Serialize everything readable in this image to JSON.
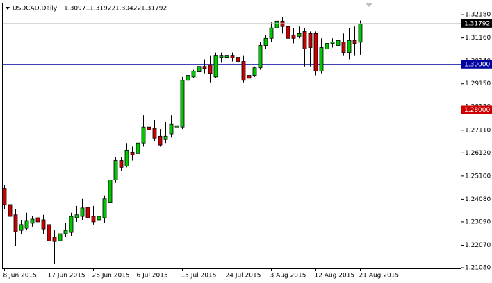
{
  "chart_data": {
    "type": "candlestick",
    "symbol": "USDCAD,Daily",
    "categories": [
      "8 Jun 2015",
      null,
      null,
      null,
      null,
      null,
      null,
      null,
      "17 Jun 2015",
      null,
      null,
      null,
      null,
      null,
      null,
      null,
      "26 Jun 2015",
      null,
      null,
      null,
      null,
      null,
      null,
      null,
      "6 Jul 2015",
      null,
      null,
      null,
      null,
      null,
      null,
      null,
      "15 Jul 2015",
      null,
      null,
      null,
      null,
      null,
      null,
      null,
      "24 Jul 2015",
      null,
      null,
      null,
      null,
      null,
      null,
      null,
      "3 Aug 2015",
      null,
      null,
      null,
      null,
      null,
      null,
      null,
      "12 Aug 2015",
      null,
      null,
      null,
      null,
      null,
      null,
      null,
      "21 Aug 2015"
    ],
    "open": [
      1.2456,
      1.2385,
      1.234,
      1.2272,
      1.2281,
      1.2303,
      1.2327,
      1.2318,
      1.2297,
      1.2242,
      1.2226,
      1.2257,
      1.2263,
      1.2327,
      1.2333,
      1.2373,
      1.2333,
      1.2318,
      1.2327,
      1.2395,
      1.2493,
      1.2578,
      1.2554,
      1.2615,
      1.2609,
      1.2655,
      1.2725,
      1.2719,
      1.2685,
      1.267,
      1.2695,
      1.2725,
      1.2725,
      1.293,
      1.2945,
      1.2967,
      1.2991,
      1.2997,
      1.2945,
      1.3031,
      1.3031,
      1.3037,
      1.3031,
      1.3013,
      1.2952,
      1.2952,
      1.2985,
      1.3083,
      1.3114,
      1.316,
      1.319,
      1.3166,
      1.3129,
      1.3123,
      1.3144,
      1.3135,
      1.3135,
      1.297,
      1.3068,
      1.3092,
      1.3083,
      1.3098,
      1.3052,
      1.3105,
      1.30971
    ],
    "high": [
      1.2471,
      1.2395,
      1.2364,
      1.2318,
      1.2349,
      1.2333,
      1.2358,
      1.234,
      1.2303,
      1.2272,
      1.2288,
      1.2303,
      1.2349,
      1.2379,
      1.241,
      1.241,
      1.2379,
      1.2364,
      1.2425,
      1.2502,
      1.2594,
      1.2594,
      1.2655,
      1.2639,
      1.267,
      1.2777,
      1.2762,
      1.2756,
      1.2716,
      1.2747,
      1.2777,
      1.2792,
      1.2945,
      1.2961,
      1.2976,
      1.3007,
      1.3022,
      1.3037,
      1.3052,
      1.3052,
      1.3105,
      1.3052,
      1.3062,
      1.3037,
      1.3007,
      1.2991,
      1.3098,
      1.3129,
      1.3184,
      1.3215,
      1.3206,
      1.319,
      1.316,
      1.3166,
      1.316,
      1.3144,
      1.3144,
      1.3114,
      1.3129,
      1.3114,
      1.3144,
      1.3135,
      1.316,
      1.3166,
      1.31922
    ],
    "low": [
      1.2364,
      1.2318,
      1.2205,
      1.2257,
      1.2272,
      1.2288,
      1.2288,
      1.2257,
      1.2211,
      1.2125,
      1.2211,
      1.2242,
      1.2248,
      1.2309,
      1.2318,
      1.2309,
      1.2297,
      1.2303,
      1.2303,
      1.2385,
      1.248,
      1.2532,
      1.2548,
      1.2578,
      1.2563,
      1.2639,
      1.2685,
      1.2664,
      1.2639,
      1.2655,
      1.2679,
      1.2716,
      1.2716,
      1.2899,
      1.2939,
      1.2945,
      1.2961,
      1.2921,
      1.2939,
      1.3007,
      1.3022,
      1.3013,
      1.2976,
      1.2921,
      1.286,
      1.2945,
      1.2976,
      1.3068,
      1.3098,
      1.3153,
      1.3135,
      1.3098,
      1.3092,
      1.3114,
      1.2991,
      1.2991,
      1.2952,
      1.2961,
      1.3037,
      1.3074,
      1.3068,
      1.3037,
      1.3022,
      1.3037,
      1.30422
    ],
    "close": [
      1.2385,
      1.2333,
      1.2266,
      1.2297,
      1.2315,
      1.2321,
      1.2309,
      1.2278,
      1.2226,
      1.2223,
      1.2257,
      1.2272,
      1.2333,
      1.234,
      1.237,
      1.2327,
      1.2309,
      1.2333,
      1.241,
      1.2493,
      1.2578,
      1.2548,
      1.2624,
      1.2603,
      1.2655,
      1.2725,
      1.2713,
      1.2676,
      1.2646,
      1.2685,
      1.2737,
      1.2731,
      1.293,
      1.2952,
      1.297,
      1.2991,
      1.2982,
      1.2961,
      1.3037,
      1.3037,
      1.3037,
      1.3028,
      1.3013,
      1.293,
      1.2939,
      1.2985,
      1.3083,
      1.3114,
      1.316,
      1.319,
      1.3166,
      1.3114,
      1.3114,
      1.3135,
      1.3068,
      1.3074,
      1.297,
      1.3074,
      1.3092,
      1.3098,
      1.3105,
      1.3052,
      1.3105,
      1.3092,
      1.31792
    ],
    "up_color": "#00c800",
    "down_color": "#c80000",
    "ylim": [
      1.2105,
      1.3267
    ],
    "yticks": [
      {
        "value": 1.3218,
        "label": "1.32180"
      },
      {
        "value": 1.3116,
        "label": "1.31160"
      },
      {
        "value": 1.3014,
        "label": "1.30140"
      },
      {
        "value": 1.2915,
        "label": "1.29150"
      },
      {
        "value": 1.2813,
        "label": "1.28130"
      },
      {
        "value": 1.2711,
        "label": "1.27110"
      },
      {
        "value": 1.2612,
        "label": "1.26120"
      },
      {
        "value": 1.251,
        "label": "1.25100"
      },
      {
        "value": 1.2408,
        "label": "1.24080"
      },
      {
        "value": 1.2309,
        "label": "1.23090"
      },
      {
        "value": 1.2207,
        "label": "1.22070"
      },
      {
        "value": 1.2108,
        "label": "1.21080"
      }
    ],
    "hlines": [
      {
        "value": 1.3,
        "label": "1.30000",
        "color": "#0000a0"
      },
      {
        "value": 1.28,
        "label": "1.28000",
        "color": "#d00000"
      }
    ],
    "grid": false
  }
}
